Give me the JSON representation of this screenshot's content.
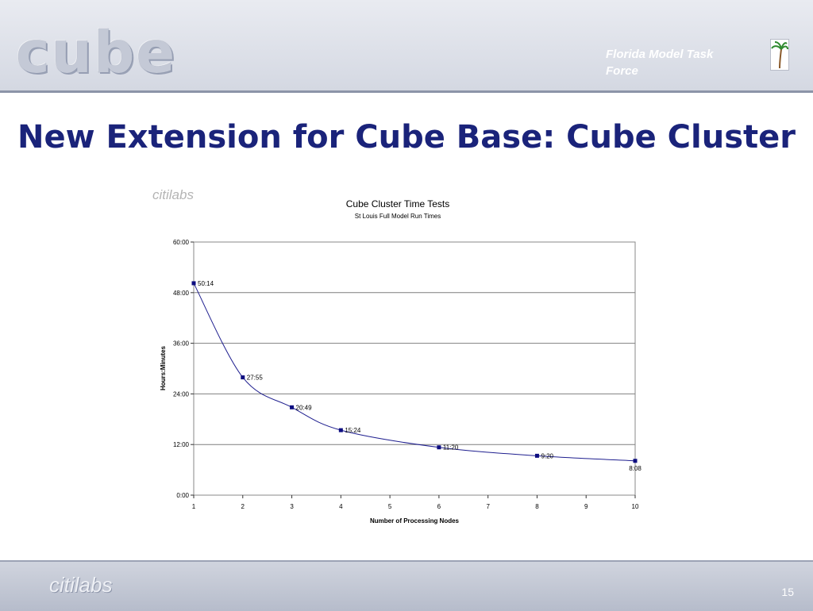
{
  "header": {
    "logo_text": "cube",
    "org_line1": "Florida Model Task",
    "org_line2": "Force",
    "palm_icon": "palm-tree-icon"
  },
  "slide": {
    "title": "New Extension for Cube Base: Cube Cluster",
    "watermark_logo": "citilabs",
    "page_number": "15"
  },
  "footer": {
    "logo_text": "citilabs"
  },
  "chart_data": {
    "type": "line",
    "title": "Cube Cluster Time Tests",
    "subtitle": "St Louis Full Model Run Times",
    "xlabel": "Number of Processing Nodes",
    "ylabel": "Hours:Minutes",
    "x_ticks": [
      "1",
      "2",
      "3",
      "4",
      "5",
      "6",
      "7",
      "8",
      "9",
      "10"
    ],
    "y_ticks": [
      "0:00",
      "12:00",
      "24:00",
      "36:00",
      "48:00",
      "60:00"
    ],
    "xlim": [
      1,
      10
    ],
    "ylim_minutes": [
      0,
      3600
    ],
    "grid": true,
    "legend": "none",
    "series_color": "#1f1f8f",
    "series": [
      {
        "x": [
          1,
          2,
          3,
          4,
          6,
          8,
          10
        ],
        "y_minutes": [
          3014,
          1675,
          1249,
          924,
          680,
          560,
          488
        ],
        "labels": [
          "50:14",
          "27:55",
          "20:49",
          "15:24",
          "11:20",
          "9:20",
          "8:08"
        ]
      }
    ]
  }
}
